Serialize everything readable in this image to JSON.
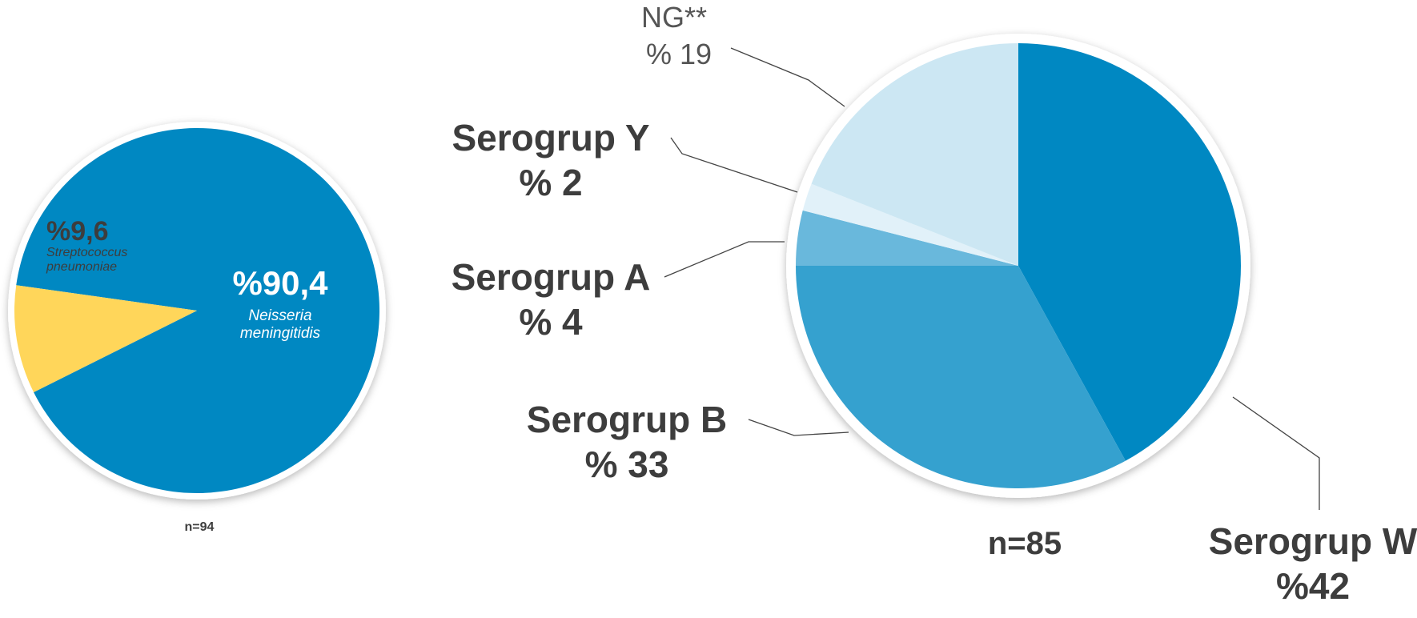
{
  "chart_data": [
    {
      "type": "pie",
      "footer": "n=94",
      "slices": [
        {
          "value_label": "%90,4",
          "value": 90.4,
          "name": "Neisseria meningitidis",
          "name_lines": [
            "Neisseria",
            "meningitidis"
          ],
          "color": "#0088c2"
        },
        {
          "value_label": "%9,6",
          "value": 9.6,
          "name": "Streptococcus pneumoniae",
          "name_lines": [
            "Streptococcus",
            "pneumoniae"
          ],
          "color": "#ffd65a"
        }
      ]
    },
    {
      "type": "pie",
      "footer": "n=85",
      "slices": [
        {
          "name": "Serogrup W",
          "value_label": "%42",
          "value": 42,
          "color": "#0088c2"
        },
        {
          "name": "Serogrup B",
          "value_label": "% 33",
          "value": 33,
          "color": "#35a1cf"
        },
        {
          "name": "Serogrup A",
          "value_label": "% 4",
          "value": 4,
          "color": "#69b8dc"
        },
        {
          "name": "Serogrup Y",
          "value_label": "% 2",
          "value": 2,
          "color": "#e1f1f9"
        },
        {
          "name": "NG**",
          "value_label": "% 19",
          "value": 19,
          "color": "#cce7f3"
        }
      ]
    }
  ]
}
